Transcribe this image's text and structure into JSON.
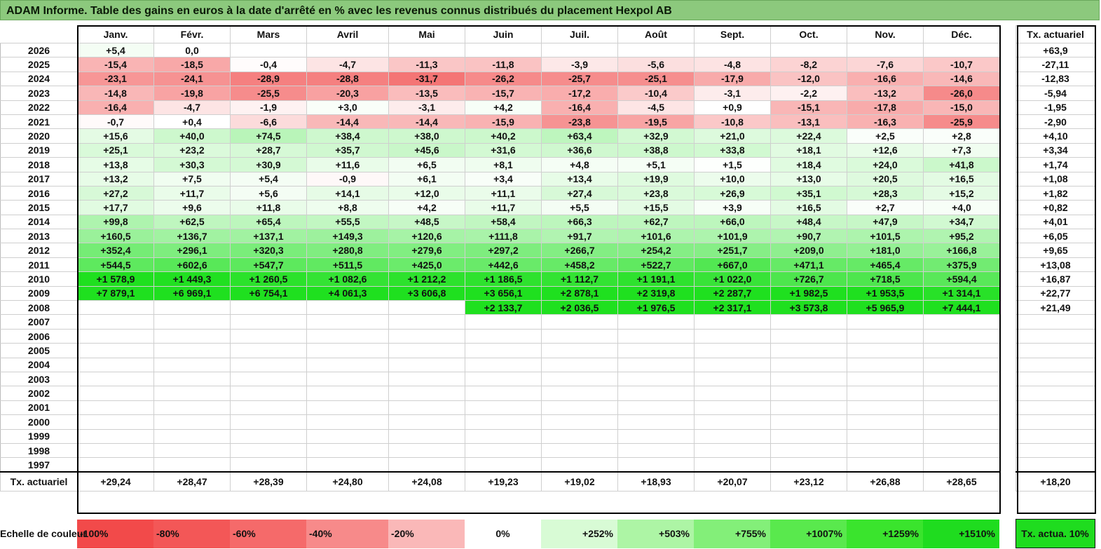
{
  "title": "ADAM Informe. Table des gains en euros à la date d'arrêté en % avec les revenus connus distribués du placement Hexpol AB",
  "chart_data": {
    "type": "table",
    "columns": [
      "Janv.",
      "Févr.",
      "Mars",
      "Avril",
      "Mai",
      "Juin",
      "Juil.",
      "Août",
      "Sept.",
      "Oct.",
      "Nov.",
      "Déc."
    ],
    "annual_header": "Tx. actuariel",
    "rows": [
      {
        "year": "2026",
        "values": [
          "+5,4",
          "0,0",
          "",
          "",
          "",
          "",
          "",
          "",
          "",
          "",
          "",
          ""
        ],
        "nums": [
          5.4,
          0,
          null,
          null,
          null,
          null,
          null,
          null,
          null,
          null,
          null,
          null
        ],
        "annual": "+63,9"
      },
      {
        "year": "2025",
        "values": [
          "-15,4",
          "-18,5",
          "-0,4",
          "-4,7",
          "-11,3",
          "-11,8",
          "-3,9",
          "-5,6",
          "-4,8",
          "-8,2",
          "-7,6",
          "-10,7"
        ],
        "nums": [
          -15.4,
          -18.5,
          -0.4,
          -4.7,
          -11.3,
          -11.8,
          -3.9,
          -5.6,
          -4.8,
          -8.2,
          -7.6,
          -10.7
        ],
        "annual": "-27,11"
      },
      {
        "year": "2024",
        "values": [
          "-23,1",
          "-24,1",
          "-28,9",
          "-28,8",
          "-31,7",
          "-26,2",
          "-25,7",
          "-25,1",
          "-17,9",
          "-12,0",
          "-16,6",
          "-14,6"
        ],
        "nums": [
          -23.1,
          -24.1,
          -28.9,
          -28.8,
          -31.7,
          -26.2,
          -25.7,
          -25.1,
          -17.9,
          -12.0,
          -16.6,
          -14.6
        ],
        "annual": "-12,83"
      },
      {
        "year": "2023",
        "values": [
          "-14,8",
          "-19,8",
          "-25,5",
          "-20,3",
          "-13,5",
          "-15,7",
          "-17,2",
          "-10,4",
          "-3,1",
          "-2,2",
          "-13,2",
          "-26,0"
        ],
        "nums": [
          -14.8,
          -19.8,
          -25.5,
          -20.3,
          -13.5,
          -15.7,
          -17.2,
          -10.4,
          -3.1,
          -2.2,
          -13.2,
          -26.0
        ],
        "annual": "-5,94"
      },
      {
        "year": "2022",
        "values": [
          "-16,4",
          "-4,7",
          "-1,9",
          "+3,0",
          "-3,1",
          "+4,2",
          "-16,4",
          "-4,5",
          "+0,9",
          "-15,1",
          "-17,8",
          "-15,0"
        ],
        "nums": [
          -16.4,
          -4.7,
          -1.9,
          3.0,
          -3.1,
          4.2,
          -16.4,
          -4.5,
          0.9,
          -15.1,
          -17.8,
          -15.0
        ],
        "annual": "-1,95"
      },
      {
        "year": "2021",
        "values": [
          "-0,7",
          "+0,4",
          "-6,6",
          "-14,4",
          "-14,4",
          "-15,9",
          "-23,8",
          "-19,5",
          "-10,8",
          "-13,1",
          "-16,3",
          "-25,9"
        ],
        "nums": [
          -0.7,
          0.4,
          -6.6,
          -14.4,
          -14.4,
          -15.9,
          -23.8,
          -19.5,
          -10.8,
          -13.1,
          -16.3,
          -25.9
        ],
        "annual": "-2,90"
      },
      {
        "year": "2020",
        "values": [
          "+15,6",
          "+40,0",
          "+74,5",
          "+38,4",
          "+38,0",
          "+40,2",
          "+63,4",
          "+32,9",
          "+21,0",
          "+22,4",
          "+2,5",
          "+2,8"
        ],
        "nums": [
          15.6,
          40.0,
          74.5,
          38.4,
          38.0,
          40.2,
          63.4,
          32.9,
          21.0,
          22.4,
          2.5,
          2.8
        ],
        "annual": "+4,10"
      },
      {
        "year": "2019",
        "values": [
          "+25,1",
          "+23,2",
          "+28,7",
          "+35,7",
          "+45,6",
          "+31,6",
          "+36,6",
          "+38,8",
          "+33,8",
          "+18,1",
          "+12,6",
          "+7,3"
        ],
        "nums": [
          25.1,
          23.2,
          28.7,
          35.7,
          45.6,
          31.6,
          36.6,
          38.8,
          33.8,
          18.1,
          12.6,
          7.3
        ],
        "annual": "+3,34"
      },
      {
        "year": "2018",
        "values": [
          "+13,8",
          "+30,3",
          "+30,9",
          "+11,6",
          "+6,5",
          "+8,1",
          "+4,8",
          "+5,1",
          "+1,5",
          "+18,4",
          "+24,0",
          "+41,8"
        ],
        "nums": [
          13.8,
          30.3,
          30.9,
          11.6,
          6.5,
          8.1,
          4.8,
          5.1,
          1.5,
          18.4,
          24.0,
          41.8
        ],
        "annual": "+1,74"
      },
      {
        "year": "2017",
        "values": [
          "+13,2",
          "+7,5",
          "+5,4",
          "-0,9",
          "+6,1",
          "+3,4",
          "+13,4",
          "+19,9",
          "+10,0",
          "+13,0",
          "+20,5",
          "+16,5"
        ],
        "nums": [
          13.2,
          7.5,
          5.4,
          -0.9,
          6.1,
          3.4,
          13.4,
          19.9,
          10.0,
          13.0,
          20.5,
          16.5
        ],
        "annual": "+1,08"
      },
      {
        "year": "2016",
        "values": [
          "+27,2",
          "+11,7",
          "+5,6",
          "+14,1",
          "+12,0",
          "+11,1",
          "+27,4",
          "+23,8",
          "+26,9",
          "+35,1",
          "+28,3",
          "+15,2"
        ],
        "nums": [
          27.2,
          11.7,
          5.6,
          14.1,
          12.0,
          11.1,
          27.4,
          23.8,
          26.9,
          35.1,
          28.3,
          15.2
        ],
        "annual": "+1,82"
      },
      {
        "year": "2015",
        "values": [
          "+17,7",
          "+9,6",
          "+11,8",
          "+8,8",
          "+4,2",
          "+11,7",
          "+5,5",
          "+15,5",
          "+3,9",
          "+16,5",
          "+2,7",
          "+4,0"
        ],
        "nums": [
          17.7,
          9.6,
          11.8,
          8.8,
          4.2,
          11.7,
          5.5,
          15.5,
          3.9,
          16.5,
          2.7,
          4.0
        ],
        "annual": "+0,82"
      },
      {
        "year": "2014",
        "values": [
          "+99,8",
          "+62,5",
          "+65,4",
          "+55,5",
          "+48,5",
          "+58,4",
          "+66,3",
          "+62,7",
          "+66,0",
          "+48,4",
          "+47,9",
          "+34,7"
        ],
        "nums": [
          99.8,
          62.5,
          65.4,
          55.5,
          48.5,
          58.4,
          66.3,
          62.7,
          66.0,
          48.4,
          47.9,
          34.7
        ],
        "annual": "+4,01"
      },
      {
        "year": "2013",
        "values": [
          "+160,5",
          "+136,7",
          "+137,1",
          "+149,3",
          "+120,6",
          "+111,8",
          "+91,7",
          "+101,6",
          "+101,9",
          "+90,7",
          "+101,5",
          "+95,2"
        ],
        "nums": [
          160.5,
          136.7,
          137.1,
          149.3,
          120.6,
          111.8,
          91.7,
          101.6,
          101.9,
          90.7,
          101.5,
          95.2
        ],
        "annual": "+6,05"
      },
      {
        "year": "2012",
        "values": [
          "+352,4",
          "+296,1",
          "+320,3",
          "+280,8",
          "+279,6",
          "+297,2",
          "+266,7",
          "+254,2",
          "+251,7",
          "+209,0",
          "+181,0",
          "+166,8"
        ],
        "nums": [
          352.4,
          296.1,
          320.3,
          280.8,
          279.6,
          297.2,
          266.7,
          254.2,
          251.7,
          209.0,
          181.0,
          166.8
        ],
        "annual": "+9,65"
      },
      {
        "year": "2011",
        "values": [
          "+544,5",
          "+602,6",
          "+547,7",
          "+511,5",
          "+425,0",
          "+442,6",
          "+458,2",
          "+522,7",
          "+667,0",
          "+471,1",
          "+465,4",
          "+375,9"
        ],
        "nums": [
          544.5,
          602.6,
          547.7,
          511.5,
          425.0,
          442.6,
          458.2,
          522.7,
          667.0,
          471.1,
          465.4,
          375.9
        ],
        "annual": "+13,08"
      },
      {
        "year": "2010",
        "values": [
          "+1 578,9",
          "+1 449,3",
          "+1 260,5",
          "+1 082,6",
          "+1 212,2",
          "+1 186,5",
          "+1 112,7",
          "+1 191,1",
          "+1 022,0",
          "+726,7",
          "+718,5",
          "+594,4"
        ],
        "nums": [
          1578.9,
          1449.3,
          1260.5,
          1082.6,
          1212.2,
          1186.5,
          1112.7,
          1191.1,
          1022.0,
          726.7,
          718.5,
          594.4
        ],
        "annual": "+16,87"
      },
      {
        "year": "2009",
        "values": [
          "+7 879,1",
          "+6 969,1",
          "+6 754,1",
          "+4 061,3",
          "+3 606,8",
          "+3 656,1",
          "+2 878,1",
          "+2 319,8",
          "+2 287,7",
          "+1 982,5",
          "+1 953,5",
          "+1 314,1"
        ],
        "nums": [
          7879.1,
          6969.1,
          6754.1,
          4061.3,
          3606.8,
          3656.1,
          2878.1,
          2319.8,
          2287.7,
          1982.5,
          1953.5,
          1314.1
        ],
        "annual": "+22,77"
      },
      {
        "year": "2008",
        "values": [
          "",
          "",
          "",
          "",
          "",
          "+2 133,7",
          "+2 036,5",
          "+1 976,5",
          "+2 317,1",
          "+3 573,8",
          "+5 965,9",
          "+7 444,1"
        ],
        "nums": [
          null,
          null,
          null,
          null,
          null,
          2133.7,
          2036.5,
          1976.5,
          2317.1,
          3573.8,
          5965.9,
          7444.1
        ],
        "annual": "+21,49"
      },
      {
        "year": "2007",
        "values": [
          "",
          "",
          "",
          "",
          "",
          "",
          "",
          "",
          "",
          "",
          "",
          ""
        ],
        "nums": [
          null,
          null,
          null,
          null,
          null,
          null,
          null,
          null,
          null,
          null,
          null,
          null
        ],
        "annual": ""
      },
      {
        "year": "2006",
        "values": [
          "",
          "",
          "",
          "",
          "",
          "",
          "",
          "",
          "",
          "",
          "",
          ""
        ],
        "nums": [
          null,
          null,
          null,
          null,
          null,
          null,
          null,
          null,
          null,
          null,
          null,
          null
        ],
        "annual": ""
      },
      {
        "year": "2005",
        "values": [
          "",
          "",
          "",
          "",
          "",
          "",
          "",
          "",
          "",
          "",
          "",
          ""
        ],
        "nums": [
          null,
          null,
          null,
          null,
          null,
          null,
          null,
          null,
          null,
          null,
          null,
          null
        ],
        "annual": ""
      },
      {
        "year": "2004",
        "values": [
          "",
          "",
          "",
          "",
          "",
          "",
          "",
          "",
          "",
          "",
          "",
          ""
        ],
        "nums": [
          null,
          null,
          null,
          null,
          null,
          null,
          null,
          null,
          null,
          null,
          null,
          null
        ],
        "annual": ""
      },
      {
        "year": "2003",
        "values": [
          "",
          "",
          "",
          "",
          "",
          "",
          "",
          "",
          "",
          "",
          "",
          ""
        ],
        "nums": [
          null,
          null,
          null,
          null,
          null,
          null,
          null,
          null,
          null,
          null,
          null,
          null
        ],
        "annual": ""
      },
      {
        "year": "2002",
        "values": [
          "",
          "",
          "",
          "",
          "",
          "",
          "",
          "",
          "",
          "",
          "",
          ""
        ],
        "nums": [
          null,
          null,
          null,
          null,
          null,
          null,
          null,
          null,
          null,
          null,
          null,
          null
        ],
        "annual": ""
      },
      {
        "year": "2001",
        "values": [
          "",
          "",
          "",
          "",
          "",
          "",
          "",
          "",
          "",
          "",
          "",
          ""
        ],
        "nums": [
          null,
          null,
          null,
          null,
          null,
          null,
          null,
          null,
          null,
          null,
          null,
          null
        ],
        "annual": ""
      },
      {
        "year": "2000",
        "values": [
          "",
          "",
          "",
          "",
          "",
          "",
          "",
          "",
          "",
          "",
          "",
          ""
        ],
        "nums": [
          null,
          null,
          null,
          null,
          null,
          null,
          null,
          null,
          null,
          null,
          null,
          null
        ],
        "annual": ""
      },
      {
        "year": "1999",
        "values": [
          "",
          "",
          "",
          "",
          "",
          "",
          "",
          "",
          "",
          "",
          "",
          ""
        ],
        "nums": [
          null,
          null,
          null,
          null,
          null,
          null,
          null,
          null,
          null,
          null,
          null,
          null
        ],
        "annual": ""
      },
      {
        "year": "1998",
        "values": [
          "",
          "",
          "",
          "",
          "",
          "",
          "",
          "",
          "",
          "",
          "",
          ""
        ],
        "nums": [
          null,
          null,
          null,
          null,
          null,
          null,
          null,
          null,
          null,
          null,
          null,
          null
        ],
        "annual": ""
      },
      {
        "year": "1997",
        "values": [
          "",
          "",
          "",
          "",
          "",
          "",
          "",
          "",
          "",
          "",
          "",
          ""
        ],
        "nums": [
          null,
          null,
          null,
          null,
          null,
          null,
          null,
          null,
          null,
          null,
          null,
          null
        ],
        "annual": ""
      }
    ],
    "summary_label": "Tx. actuariel",
    "summary_values": [
      "+29,24",
      "+28,47",
      "+28,39",
      "+24,80",
      "+24,08",
      "+19,23",
      "+19,02",
      "+18,93",
      "+20,07",
      "+23,12",
      "+26,88",
      "+28,65"
    ],
    "summary_annual": "+18,20",
    "scale": {
      "label": "Echelle de couleur",
      "steps": [
        {
          "label": "-100%",
          "color": "#f24a4a"
        },
        {
          "label": "-80%",
          "color": "#f35757"
        },
        {
          "label": "-60%",
          "color": "#f56a6a"
        },
        {
          "label": "-40%",
          "color": "#f78a8a"
        },
        {
          "label": "-20%",
          "color": "#fab8b8"
        },
        {
          "label": "0%",
          "color": "#ffffff"
        },
        {
          "label": "+252%",
          "color": "#d8fbd5"
        },
        {
          "label": "+503%",
          "color": "#adf5a5"
        },
        {
          "label": "+755%",
          "color": "#83ef79"
        },
        {
          "label": "+1007%",
          "color": "#59e94d"
        },
        {
          "label": "+1259%",
          "color": "#3ae42d"
        },
        {
          "label": "+1510%",
          "color": "#1fdc1f"
        }
      ],
      "tx_label": "Tx. actua. 10%",
      "tx_color": "#1fdc1f"
    }
  }
}
